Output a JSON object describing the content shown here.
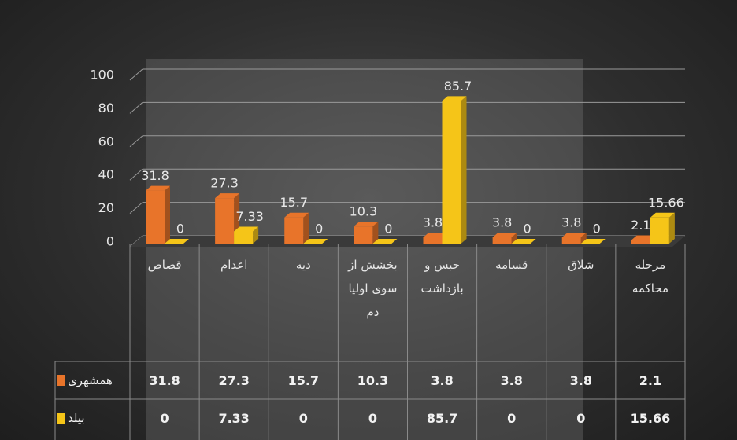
{
  "chart_data": {
    "type": "bar",
    "categories": [
      "قصاص",
      "اعدام",
      "دیه",
      "بخشش از سوی اولیا دم",
      "حبس و بازداشت",
      "قسامه",
      "شلاق",
      "مرحله محاکمه"
    ],
    "series": [
      {
        "name": "همشهری",
        "color": "#e8742a",
        "values": [
          31.8,
          27.3,
          15.7,
          10.3,
          3.8,
          3.8,
          3.8,
          2.1
        ]
      },
      {
        "name": "بیلد",
        "color": "#f5c518",
        "values": [
          0,
          7.33,
          0,
          0,
          85.7,
          0,
          0,
          15.66
        ]
      }
    ],
    "ylim": [
      0,
      100
    ],
    "yticks": [
      0,
      20,
      40,
      60,
      80,
      100
    ],
    "grid": true
  }
}
